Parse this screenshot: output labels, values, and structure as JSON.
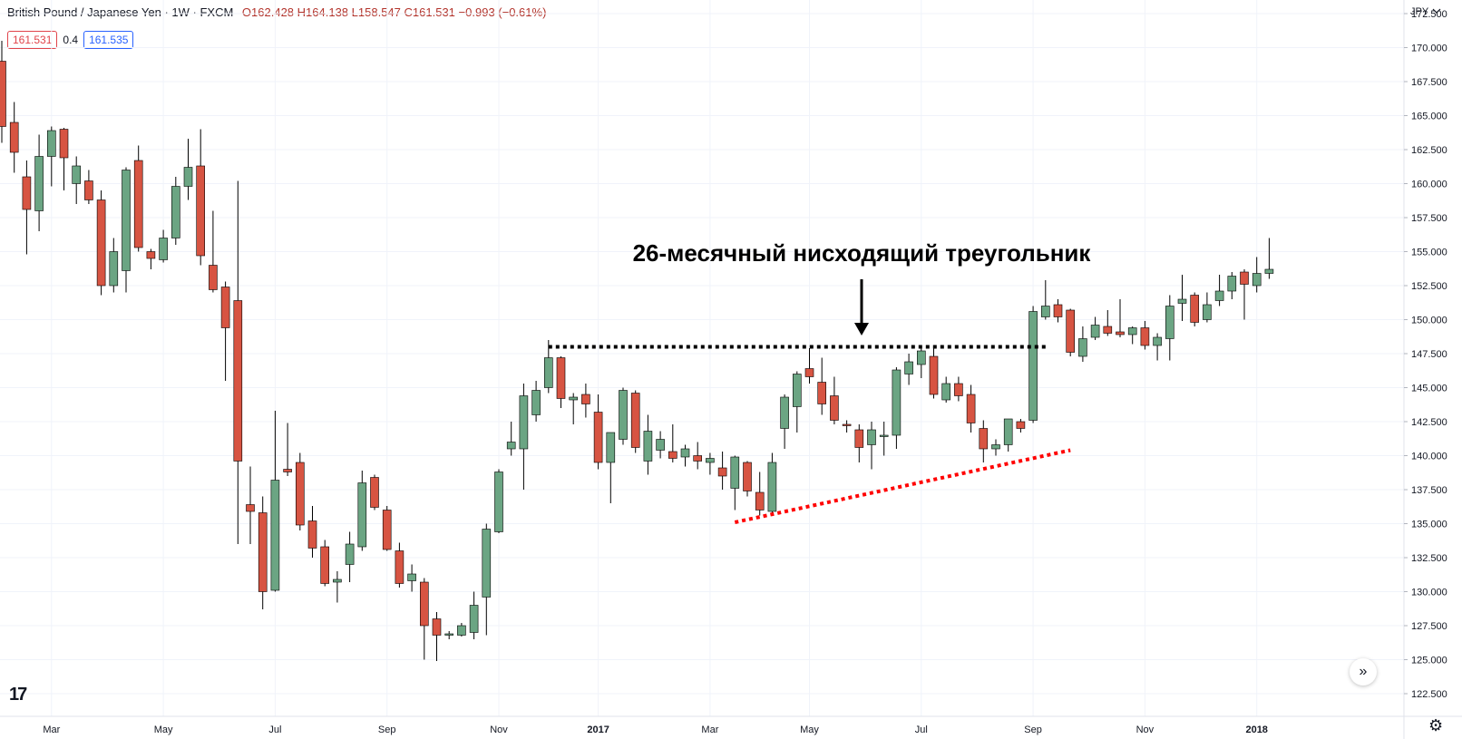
{
  "legend": {
    "title": "British Pound / Japanese Yen · 1W · FXCM",
    "open": "O162.428",
    "high": "H164.138",
    "low": "L158.547",
    "close": "C161.531",
    "change": "−0.993 (−0.61%)"
  },
  "pricebox": {
    "bid": "161.531",
    "spread": "0.4",
    "ask": "161.535"
  },
  "colors": {
    "up": "#6ba583",
    "down": "#d75442",
    "grid": "#f0f3fa",
    "axis_text": "#131722",
    "resistance": "#000000",
    "support": "#ff0000"
  },
  "chart_data": {
    "type": "candlestick",
    "title": "",
    "annotation": "26-месячный нисходящий треугольник",
    "currency_label": "JPY",
    "ylim": [
      121.5,
      173.5
    ],
    "y_ticks": [
      "172.500",
      "170.000",
      "167.500",
      "165.000",
      "162.500",
      "160.000",
      "157.500",
      "155.000",
      "152.500",
      "150.000",
      "147.500",
      "145.000",
      "142.500",
      "140.000",
      "137.500",
      "135.000",
      "132.500",
      "130.000",
      "127.500",
      "125.000",
      "122.500"
    ],
    "x_ticks": [
      {
        "label": "Mar",
        "idx": 4
      },
      {
        "label": "May",
        "idx": 13
      },
      {
        "label": "Jul",
        "idx": 22
      },
      {
        "label": "Sep",
        "idx": 31
      },
      {
        "label": "Nov",
        "idx": 40
      },
      {
        "label": "2017",
        "idx": 48
      },
      {
        "label": "Mar",
        "idx": 57
      },
      {
        "label": "May",
        "idx": 65
      },
      {
        "label": "Jul",
        "idx": 74
      },
      {
        "label": "Sep",
        "idx": 83
      },
      {
        "label": "Nov",
        "idx": 92
      },
      {
        "label": "2018",
        "idx": 101
      }
    ],
    "candles": [
      [
        169.0,
        170.5,
        163.0,
        164.2
      ],
      [
        164.5,
        166.0,
        160.8,
        162.3
      ],
      [
        160.5,
        161.7,
        154.8,
        158.1
      ],
      [
        158.0,
        163.6,
        156.5,
        162.0
      ],
      [
        162.0,
        164.2,
        159.8,
        163.9
      ],
      [
        164.0,
        164.1,
        159.5,
        161.9
      ],
      [
        160.0,
        162.0,
        158.5,
        161.3
      ],
      [
        160.2,
        161.0,
        158.5,
        158.8
      ],
      [
        158.8,
        159.5,
        151.8,
        152.5
      ],
      [
        152.5,
        156.0,
        152.0,
        155.0
      ],
      [
        153.6,
        161.2,
        152.0,
        161.0
      ],
      [
        161.7,
        162.8,
        155.0,
        155.3
      ],
      [
        155.0,
        155.2,
        153.7,
        154.5
      ],
      [
        154.4,
        156.6,
        154.2,
        156.0
      ],
      [
        156.0,
        160.5,
        155.5,
        159.8
      ],
      [
        159.8,
        163.3,
        158.8,
        161.2
      ],
      [
        161.3,
        164.0,
        154.0,
        154.7
      ],
      [
        154.0,
        158.0,
        152.0,
        152.2
      ],
      [
        152.4,
        152.8,
        145.5,
        149.4
      ],
      [
        151.4,
        160.2,
        133.5,
        139.6
      ],
      [
        136.4,
        139.2,
        133.5,
        135.9
      ],
      [
        135.8,
        137.0,
        128.7,
        130.0
      ],
      [
        130.1,
        143.3,
        130.0,
        138.2
      ],
      [
        139.0,
        142.4,
        138.5,
        138.8
      ],
      [
        139.5,
        140.2,
        134.5,
        134.9
      ],
      [
        135.2,
        136.3,
        132.5,
        133.2
      ],
      [
        133.3,
        133.8,
        130.4,
        130.6
      ],
      [
        130.7,
        131.5,
        129.2,
        130.9
      ],
      [
        132.0,
        134.4,
        130.7,
        133.5
      ],
      [
        133.3,
        138.9,
        133.0,
        138.0
      ],
      [
        138.4,
        138.6,
        136.0,
        136.2
      ],
      [
        136.0,
        136.3,
        133.0,
        133.1
      ],
      [
        133.0,
        133.6,
        130.3,
        130.6
      ],
      [
        130.8,
        132.0,
        130.0,
        131.3
      ],
      [
        130.7,
        131.0,
        125.0,
        127.5
      ],
      [
        128.0,
        128.5,
        124.9,
        126.8
      ],
      [
        126.9,
        127.1,
        126.5,
        126.9
      ],
      [
        126.8,
        127.7,
        126.7,
        127.5
      ],
      [
        127.0,
        130.0,
        126.5,
        129.0
      ],
      [
        129.6,
        135.0,
        126.8,
        134.6
      ],
      [
        134.4,
        139.0,
        134.3,
        138.8
      ],
      [
        140.5,
        142.5,
        140.0,
        141.0
      ],
      [
        140.5,
        145.3,
        137.5,
        144.4
      ],
      [
        143.0,
        145.5,
        142.5,
        144.8
      ],
      [
        145.0,
        148.5,
        144.6,
        147.2
      ],
      [
        147.2,
        147.3,
        143.5,
        144.2
      ],
      [
        144.1,
        144.6,
        142.3,
        144.3
      ],
      [
        144.5,
        145.3,
        142.8,
        143.8
      ],
      [
        143.2,
        144.5,
        139.0,
        139.5
      ],
      [
        139.5,
        141.5,
        136.5,
        141.7
      ],
      [
        141.2,
        145.0,
        140.8,
        144.8
      ],
      [
        144.6,
        144.8,
        140.2,
        140.6
      ],
      [
        139.6,
        143.0,
        138.6,
        141.8
      ],
      [
        140.4,
        141.8,
        139.8,
        141.2
      ],
      [
        140.3,
        142.3,
        139.5,
        139.8
      ],
      [
        139.9,
        140.8,
        139.2,
        140.5
      ],
      [
        140.0,
        141.0,
        139.0,
        139.6
      ],
      [
        139.5,
        140.2,
        138.6,
        139.8
      ],
      [
        139.1,
        140.3,
        137.5,
        138.5
      ],
      [
        137.6,
        140.0,
        136.0,
        139.9
      ],
      [
        139.5,
        139.6,
        137.0,
        137.4
      ],
      [
        137.3,
        138.8,
        135.6,
        136.0
      ],
      [
        135.9,
        140.2,
        135.8,
        139.5
      ],
      [
        142.0,
        144.5,
        140.5,
        144.3
      ],
      [
        143.6,
        146.2,
        141.7,
        146.0
      ],
      [
        146.4,
        147.9,
        145.3,
        145.8
      ],
      [
        145.4,
        147.2,
        143.0,
        143.8
      ],
      [
        144.4,
        145.8,
        142.3,
        142.6
      ],
      [
        142.3,
        142.6,
        141.7,
        142.2
      ],
      [
        141.9,
        142.3,
        139.5,
        140.6
      ],
      [
        140.8,
        142.5,
        139.0,
        141.9
      ],
      [
        141.4,
        142.5,
        140.0,
        141.5
      ],
      [
        141.5,
        146.5,
        140.5,
        146.3
      ],
      [
        146.0,
        147.5,
        145.2,
        146.9
      ],
      [
        146.7,
        147.9,
        145.7,
        147.7
      ],
      [
        147.3,
        147.9,
        144.2,
        144.5
      ],
      [
        144.1,
        145.8,
        143.9,
        145.3
      ],
      [
        145.3,
        145.8,
        144.0,
        144.4
      ],
      [
        144.5,
        145.2,
        141.7,
        142.4
      ],
      [
        142.0,
        142.6,
        139.5,
        140.5
      ],
      [
        140.5,
        141.2,
        140.0,
        140.8
      ],
      [
        140.8,
        142.6,
        140.3,
        142.7
      ],
      [
        142.5,
        142.7,
        141.7,
        142.0
      ],
      [
        142.6,
        151.0,
        142.4,
        150.6
      ],
      [
        150.2,
        152.9,
        150.0,
        151.0
      ],
      [
        151.1,
        151.5,
        149.8,
        150.2
      ],
      [
        150.7,
        150.8,
        147.3,
        147.6
      ],
      [
        147.3,
        149.5,
        146.9,
        148.6
      ],
      [
        148.7,
        150.2,
        148.5,
        149.6
      ],
      [
        149.5,
        150.7,
        148.8,
        149.0
      ],
      [
        149.1,
        151.5,
        148.7,
        148.9
      ],
      [
        148.9,
        149.5,
        148.2,
        149.4
      ],
      [
        149.4,
        149.9,
        147.8,
        148.1
      ],
      [
        148.1,
        149.0,
        147.0,
        148.7
      ],
      [
        148.6,
        151.8,
        147.0,
        151.0
      ],
      [
        151.2,
        153.3,
        149.9,
        151.5
      ],
      [
        151.8,
        152.0,
        149.5,
        149.8
      ],
      [
        150.0,
        152.0,
        149.8,
        151.1
      ],
      [
        151.4,
        153.3,
        151.0,
        152.1
      ],
      [
        152.1,
        153.5,
        151.5,
        153.2
      ],
      [
        153.5,
        153.7,
        150.0,
        152.6
      ],
      [
        152.5,
        154.6,
        152.0,
        153.4
      ],
      [
        153.4,
        156.0,
        153.0,
        153.7
      ]
    ],
    "resistance_line": {
      "from": {
        "idx": 44,
        "value": 148.0
      },
      "to": {
        "idx": 84,
        "value": 148.0
      },
      "color": "#000000",
      "style": "dotted"
    },
    "support_line": {
      "from": {
        "idx": 59,
        "value": 135.1
      },
      "to": {
        "idx": 86,
        "value": 140.4
      },
      "color": "#ff0000",
      "style": "dotted"
    }
  }
}
